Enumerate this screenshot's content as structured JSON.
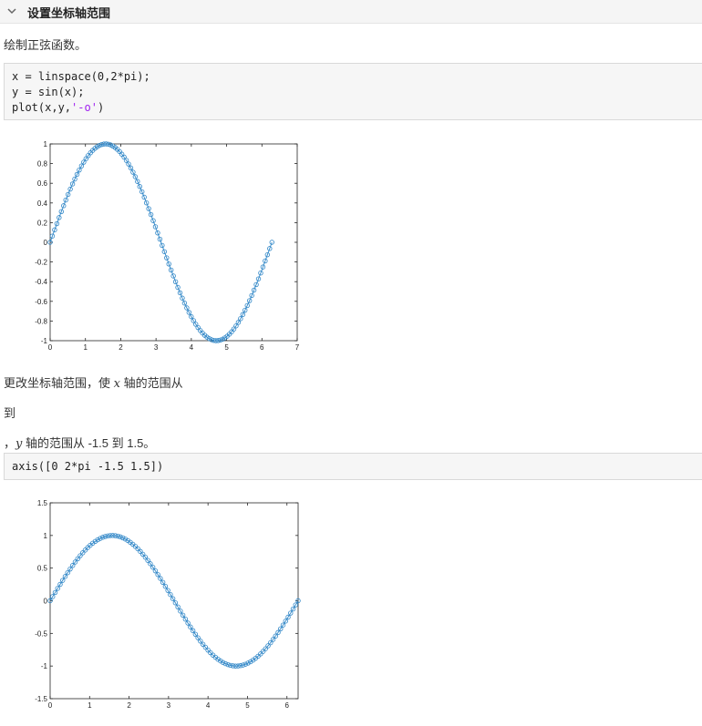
{
  "section": {
    "title": "设置坐标轴范围"
  },
  "text1": "绘制正弦函数。",
  "code1": {
    "line1": "x = linspace(0,2*pi);",
    "line2": "y = sin(x);",
    "line3_a": "plot(x,y,",
    "line3_str": "'-o'",
    "line3_b": ")"
  },
  "text2": {
    "a": "更改坐标轴范围，使 ",
    "var": "x",
    "b": " 轴的范围从"
  },
  "text3": "到",
  "text4": {
    "a": "，",
    "var": "y",
    "b": " 轴的范围从 -1.5 到 1.5。"
  },
  "code2": {
    "line1": "axis([0 2*pi -1.5 1.5])"
  },
  "colors": {
    "series": "#2f86c7",
    "code_bg": "#f6f6f6",
    "string": "#a020f0"
  },
  "chart_data": [
    {
      "type": "line",
      "marker": "circle",
      "function": "sin(x)",
      "points": 100,
      "xlim": [
        0,
        7
      ],
      "ylim": [
        -1,
        1
      ],
      "xticks": [
        0,
        1,
        2,
        3,
        4,
        5,
        6,
        7
      ],
      "yticks": [
        -1,
        -0.8,
        -0.6,
        -0.4,
        -0.2,
        0,
        0.2,
        0.4,
        0.6,
        0.8,
        1
      ],
      "xtick_labels": [
        "0",
        "1",
        "2",
        "3",
        "4",
        "5",
        "6",
        "7"
      ],
      "ytick_labels": [
        "-1",
        "-0.8",
        "-0.6",
        "-0.4",
        "-0.2",
        "0",
        "0.2",
        "0.4",
        "0.6",
        "0.8",
        "1"
      ]
    },
    {
      "type": "line",
      "marker": "circle",
      "function": "sin(x)",
      "points": 100,
      "xlim": [
        0,
        6.2832
      ],
      "ylim": [
        -1.5,
        1.5
      ],
      "xticks": [
        0,
        1,
        2,
        3,
        4,
        5,
        6
      ],
      "yticks": [
        -1.5,
        -1,
        -0.5,
        0,
        0.5,
        1,
        1.5
      ],
      "xtick_labels": [
        "0",
        "1",
        "2",
        "3",
        "4",
        "5",
        "6"
      ],
      "ytick_labels": [
        "-1.5",
        "-1",
        "-0.5",
        "0",
        "0.5",
        "1",
        "1.5"
      ]
    }
  ]
}
